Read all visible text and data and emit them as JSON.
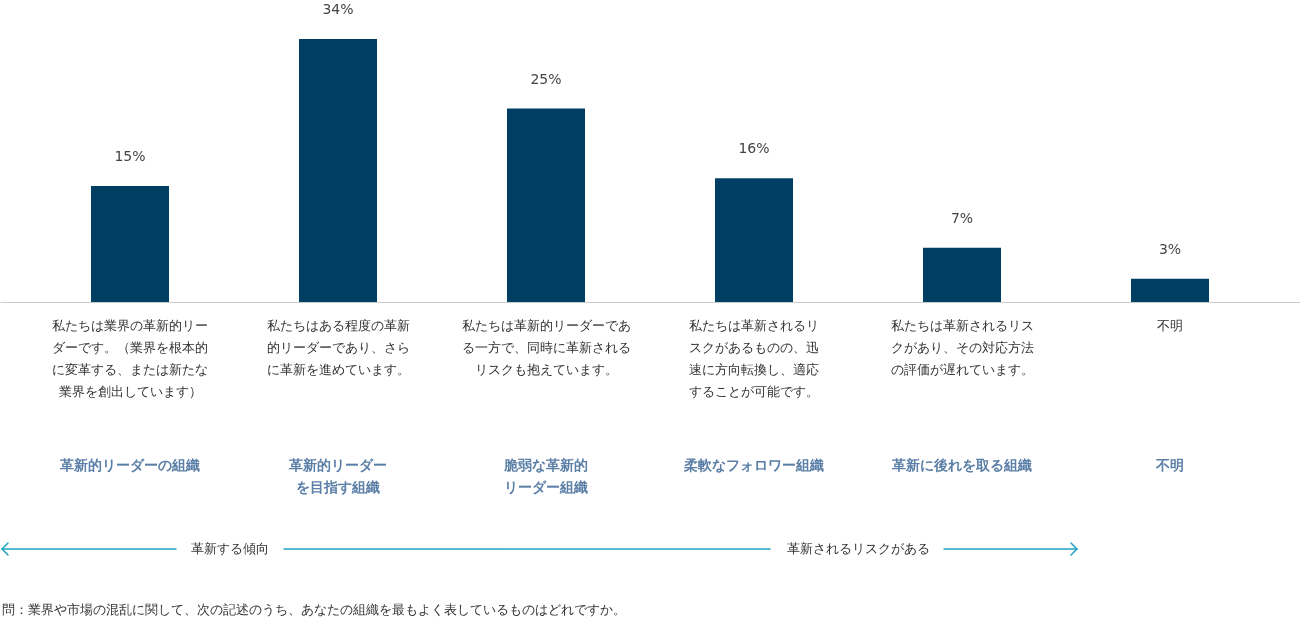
{
  "chart_data": {
    "type": "bar",
    "categories": [
      "革新的リーダーの組織",
      "革新的リーダーを目指す組織",
      "脆弱な革新的リーダー組織",
      "柔軟なフォロワー組織",
      "革新に後れを取る組織",
      "不明"
    ],
    "values": [
      15,
      34,
      25,
      16,
      7,
      3
    ],
    "value_labels": [
      "15%",
      "34%",
      "25%",
      "16%",
      "7%",
      "3%"
    ],
    "color": "#003f63",
    "annotations": [
      "私たちは業界の革新的リーダーです。（業界を根本的に変革する、または新たな業界を創出しています）",
      "私たちはある程度の革新的リーダーであり、さらに革新を進めています。",
      "私たちは革新的リーダーである一方で、同時に革新されるリスクも抱えています。",
      "私たちは革新されるリスクがあるものの、迅速に方向転換し、適応することが可能です。",
      "私たちは革新されるリスクがあり、その対応方法の評価が遅れています。",
      "不明",
      "革新する傾向",
      "革新されるリスクがある",
      "問：業界や市場の混乱に関して、次の記述のうち、あなたの組織を最もよく表しているものはどれですか。"
    ]
  }
}
